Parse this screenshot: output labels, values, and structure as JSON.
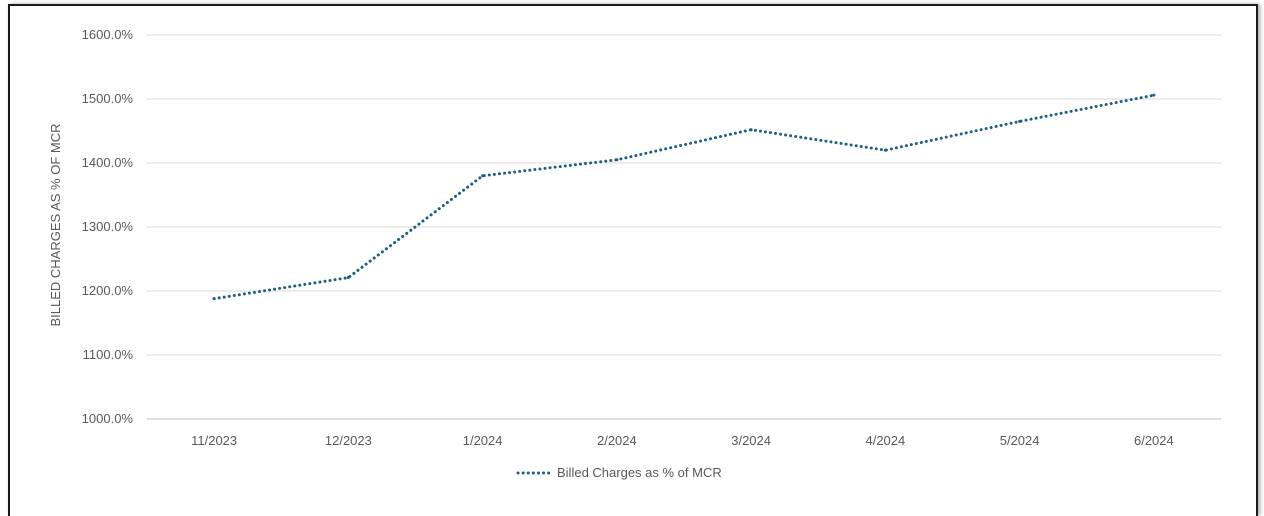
{
  "chart_data": {
    "type": "line",
    "title": "",
    "ylabel": "BILLED CHARGES AS % OF MCR",
    "xlabel": "",
    "categories": [
      "11/2023",
      "12/2023",
      "1/2024",
      "2/2024",
      "3/2024",
      "4/2024",
      "5/2024",
      "6/2024"
    ],
    "yticks": [
      "1000.0%",
      "1100.0%",
      "1200.0%",
      "1300.0%",
      "1400.0%",
      "1500.0%",
      "1600.0%"
    ],
    "ylim": [
      1000,
      1600
    ],
    "grid": true,
    "legend_position": "bottom",
    "series": [
      {
        "name": "Billed Charges as % of MCR",
        "values": [
          1188,
          1221,
          1380,
          1405,
          1452,
          1420,
          1465,
          1506
        ],
        "color": "#1f5f7f",
        "line_style": "dotted"
      }
    ]
  }
}
